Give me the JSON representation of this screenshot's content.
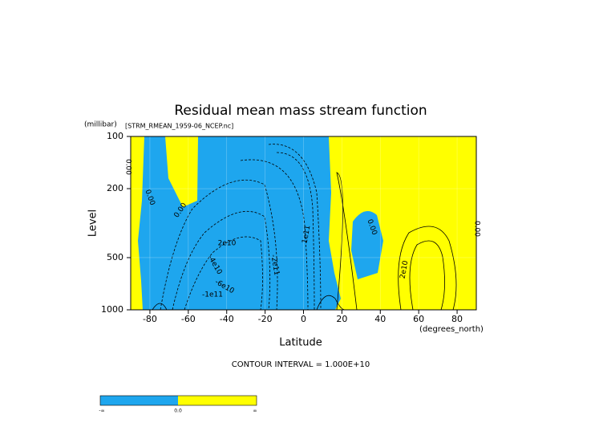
{
  "chart_data": {
    "type": "contour",
    "title": "Residual mean mass stream function",
    "subtitle": "[STRM_RMEAN_1959-06_NCEP.nc]",
    "xlabel": "Latitude",
    "xunit": "(degrees_north)",
    "ylabel": "Level",
    "yunit": "(millibar)",
    "xlim": [
      -90,
      90
    ],
    "xticks": [
      -80,
      -60,
      -40,
      -20,
      0,
      20,
      40,
      60,
      80
    ],
    "ylim": [
      1000,
      100
    ],
    "yticks": [
      100,
      200,
      500,
      1000
    ],
    "log_y": true,
    "grid": true,
    "colors": {
      "negative": "#1ea6ee",
      "positive": "#ffff00"
    },
    "contour_labels": [
      "0.00",
      "0.00",
      "0.00",
      "2e10",
      "-4e10",
      "-6e10",
      "-1e11",
      "-2e11",
      "1e11",
      "0.00",
      "2e10",
      "0.00"
    ],
    "note": "CONTOUR INTERVAL = 1.000E+10",
    "colorbar": {
      "labels": [
        "-∞",
        "0.0",
        "∞"
      ]
    }
  }
}
